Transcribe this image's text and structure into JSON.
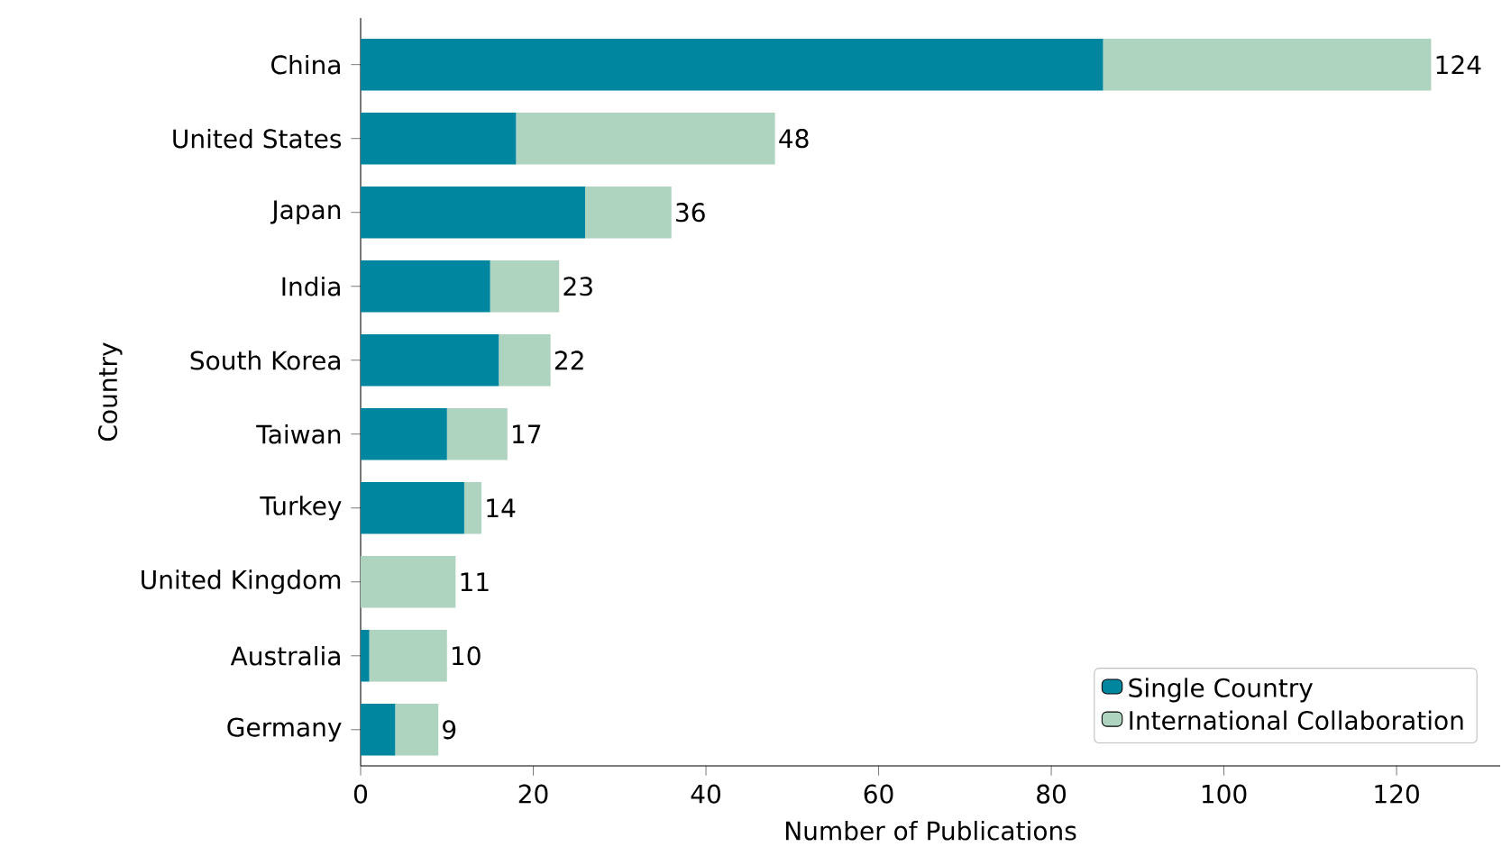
{
  "chart_data": {
    "type": "bar",
    "orientation": "horizontal",
    "stacked": true,
    "xlabel": "Number of Publications",
    "ylabel": "Country",
    "categories": [
      "China",
      "United States",
      "Japan",
      "India",
      "South Korea",
      "Taiwan",
      "Turkey",
      "United Kingdom",
      "Australia",
      "Germany"
    ],
    "series": [
      {
        "name": "Single Country",
        "color": "#00869e",
        "values": [
          86,
          18,
          26,
          15,
          16,
          10,
          12,
          0,
          1,
          4
        ]
      },
      {
        "name": "International Collaboration",
        "color": "#aed3bf",
        "values": [
          38,
          30,
          10,
          8,
          6,
          7,
          2,
          11,
          9,
          5
        ]
      }
    ],
    "totals": [
      "124",
      "48",
      "36",
      "23",
      "22",
      "17",
      "14",
      "11",
      "10",
      "9"
    ],
    "xlim": [
      0,
      132
    ],
    "xticks": [
      0,
      20,
      40,
      60,
      80,
      100,
      120
    ],
    "legend": "bottom right",
    "grid": false
  }
}
